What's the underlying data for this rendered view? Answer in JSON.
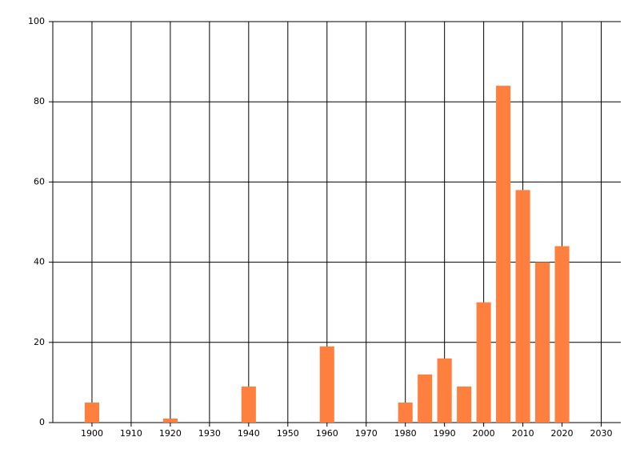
{
  "chart_data": {
    "type": "bar",
    "x": [
      1900,
      1920,
      1940,
      1960,
      1980,
      1985,
      1990,
      1995,
      2000,
      2005,
      2010,
      2015,
      2020
    ],
    "values": [
      5,
      1,
      9,
      19,
      5,
      12,
      16,
      9,
      30,
      84,
      58,
      40,
      44
    ],
    "color": "#ff7f3f",
    "xlim": [
      1890,
      2035
    ],
    "xticks": [
      1900,
      1910,
      1920,
      1930,
      1940,
      1950,
      1960,
      1970,
      1980,
      1990,
      2000,
      2010,
      2020,
      2030
    ],
    "ylim": [
      0,
      100
    ],
    "yticks": [
      0,
      20,
      40,
      60,
      80,
      100
    ],
    "grid": true
  }
}
